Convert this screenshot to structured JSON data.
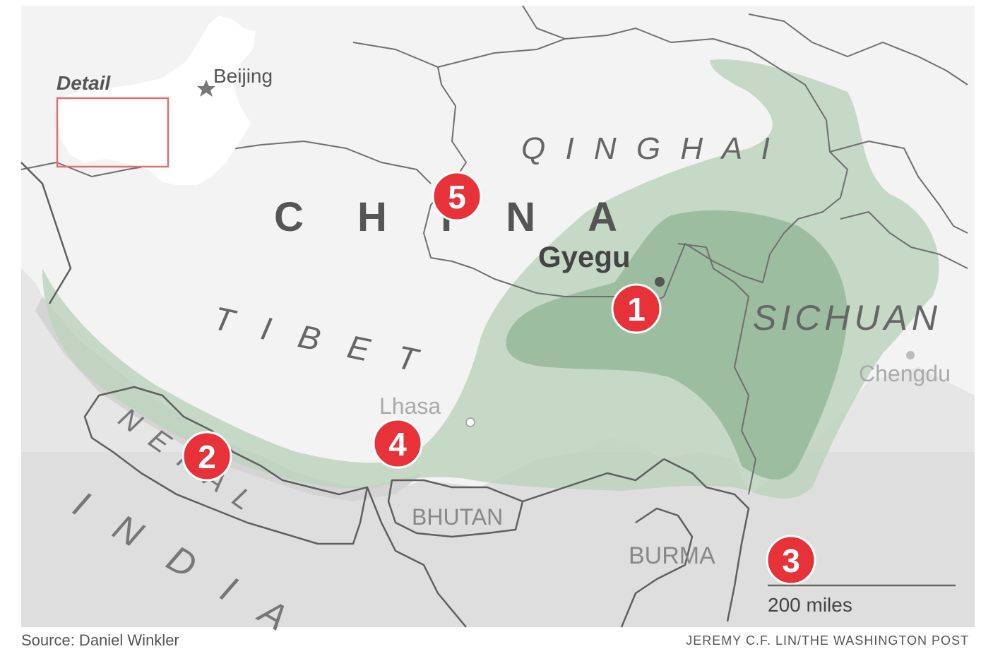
{
  "inset": {
    "detail_label": "Detail",
    "capital_label": "Beijing"
  },
  "regions": {
    "country": "C H I N A",
    "qinghai": "Q I N G H A I",
    "tibet": "T I B E T",
    "sichuan": "SICHUAN",
    "nepal": "N E P A L",
    "india": "I N D I A",
    "bhutan": "BHUTAN",
    "burma": "BURMA"
  },
  "cities": {
    "gyegu": "Gyegu",
    "lhasa": "Lhasa",
    "chengdu": "Chengdu"
  },
  "markers": [
    "1",
    "2",
    "3",
    "4",
    "5"
  ],
  "scale": {
    "label": "200 miles"
  },
  "footer": {
    "source": "Source: Daniel Winkler",
    "credit": "JEREMY C.F. LIN/THE WASHINGTON POST"
  },
  "colors": {
    "background": "#e6e6e6",
    "plateau": "#f4f4f4",
    "range_light": "#bcd3bd",
    "range_dark": "#8fb394",
    "marker": "#e8323a",
    "border": "#6f6f6f"
  }
}
